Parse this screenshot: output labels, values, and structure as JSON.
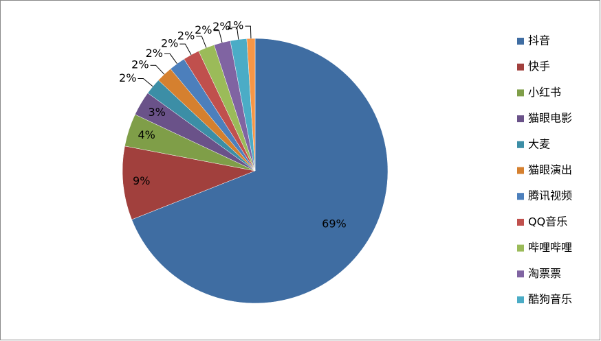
{
  "chart_data": {
    "type": "pie",
    "categories": [
      "抖音",
      "快手",
      "小红书",
      "猫眼电影",
      "大麦",
      "猫眼演出",
      "腾讯视频",
      "QQ音乐",
      "哔哩哔哩",
      "淘票票",
      "酷狗音乐",
      null
    ],
    "values": [
      69,
      9,
      4,
      3,
      2,
      2,
      2,
      2,
      2,
      2,
      2,
      1
    ],
    "value_labels": [
      "69%",
      "9%",
      "4%",
      "3%",
      "2%",
      "2%",
      "2%",
      "2%",
      "2%",
      "2%",
      "2%",
      "1%"
    ],
    "colors": [
      "#3f6da2",
      "#a1403d",
      "#7f9e48",
      "#6a5289",
      "#3c8ea6",
      "#d5802f",
      "#4c7fbc",
      "#c0504d",
      "#9bbb59",
      "#8064a2",
      "#4bacc6",
      "#f79646"
    ],
    "legend": "right"
  }
}
